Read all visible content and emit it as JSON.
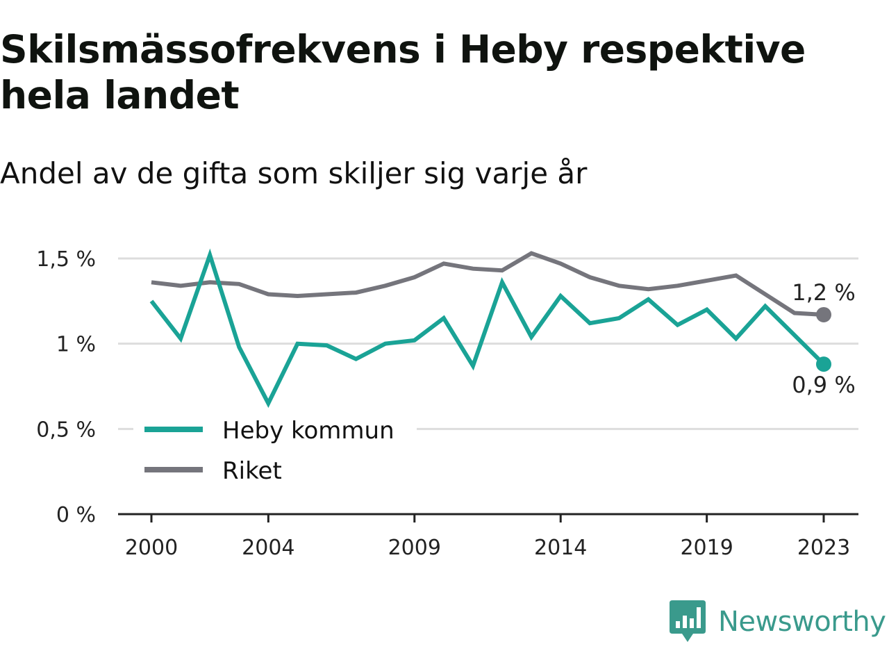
{
  "header": {
    "title": "Skilsmässofrekvens i Heby respektive hela landet",
    "subtitle": "Andel av de gifta som skiljer sig varje år"
  },
  "brand": {
    "name": "Newsworthy",
    "color": "#3a9a8c",
    "icon": "newsworthy-logo-icon"
  },
  "colors": {
    "heby": "#1aa396",
    "riket": "#75757c",
    "grid": "#dddddd",
    "axis": "#222222"
  },
  "chart_data": {
    "type": "line",
    "title": "Skilsmässofrekvens i Heby respektive hela landet",
    "subtitle": "Andel av de gifta som skiljer sig varje år",
    "xlabel": "",
    "ylabel": "",
    "x": [
      2000,
      2001,
      2002,
      2003,
      2004,
      2005,
      2006,
      2007,
      2008,
      2009,
      2010,
      2011,
      2012,
      2013,
      2014,
      2015,
      2016,
      2017,
      2018,
      2019,
      2020,
      2021,
      2022,
      2023
    ],
    "x_ticks": [
      2000,
      2004,
      2009,
      2014,
      2019,
      2023
    ],
    "x_tick_labels": [
      "2000",
      "2004",
      "2009",
      "2014",
      "2019",
      "2023"
    ],
    "ylim": [
      0,
      1.5
    ],
    "y_ticks": [
      0,
      0.5,
      1,
      1.5
    ],
    "y_tick_labels": [
      "0 %",
      "0,5 %",
      "1 %",
      "1,5 %"
    ],
    "grid": true,
    "legend": "bottom-left",
    "series": [
      {
        "name": "Heby kommun",
        "color": "#1aa396",
        "values": [
          1.25,
          1.03,
          1.52,
          0.98,
          0.65,
          1.0,
          0.99,
          0.91,
          1.0,
          1.02,
          1.15,
          0.87,
          1.36,
          1.04,
          1.28,
          1.12,
          1.15,
          1.26,
          1.11,
          1.2,
          1.03,
          1.22,
          1.05,
          0.88
        ],
        "end_label": "0,9 %"
      },
      {
        "name": "Riket",
        "color": "#75757c",
        "values": [
          1.36,
          1.34,
          1.36,
          1.35,
          1.29,
          1.28,
          1.29,
          1.3,
          1.34,
          1.39,
          1.47,
          1.44,
          1.43,
          1.53,
          1.47,
          1.39,
          1.34,
          1.32,
          1.34,
          1.37,
          1.4,
          1.29,
          1.18,
          1.17
        ],
        "end_label": "1,2 %"
      }
    ]
  }
}
